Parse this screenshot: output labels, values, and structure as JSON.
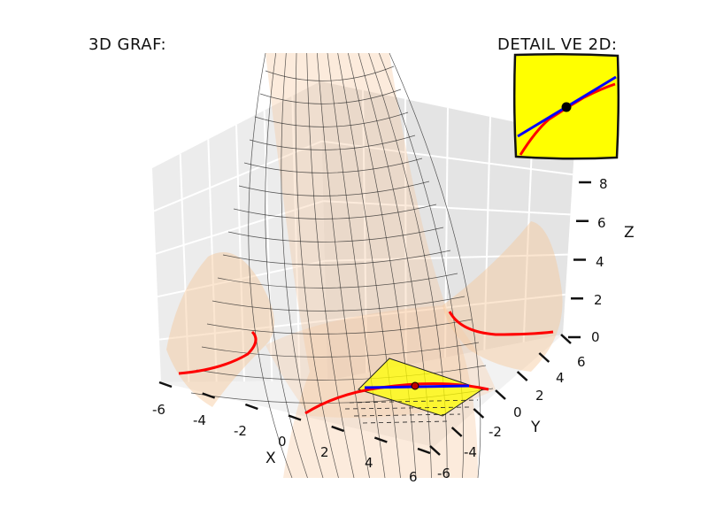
{
  "chart_data": {
    "type": "surface",
    "title": "3D GRAF:",
    "inset_title": "DETAIL VE 2D:",
    "x_label": "X",
    "y_label": "Y",
    "z_label": "Z",
    "x_ticks": [
      "-6",
      "-4",
      "-2",
      "0",
      "2",
      "4",
      "6"
    ],
    "y_ticks": [
      "-6",
      "-4",
      "-2",
      "0",
      "2",
      "4",
      "6"
    ],
    "z_ticks": [
      "0",
      "2",
      "4",
      "6",
      "8"
    ],
    "xlim": [
      -6,
      6
    ],
    "ylim": [
      -6,
      6
    ],
    "zlim": [
      0,
      8
    ],
    "grid": true,
    "surface_color": "#f7c79a",
    "tangent_plane_color": "#ffff00",
    "level_curve_color": "#ff0000",
    "tangent_line_color": "#0000ff",
    "inset": {
      "background": "#ffff00",
      "curve_color": "#ff0000",
      "tangent_color": "#0000ff",
      "point": [
        0,
        0
      ]
    }
  }
}
